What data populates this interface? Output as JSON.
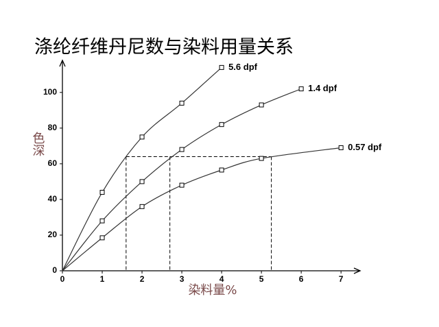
{
  "chart_data": {
    "type": "line",
    "title": "涤纶纤维丹尼数与染料用量关系",
    "y_label": "色深",
    "x_label": "染料量%",
    "xlim": [
      0,
      7.48
    ],
    "ylim": [
      0,
      118
    ],
    "xticks": [
      0,
      1,
      2,
      3,
      4,
      5,
      6,
      7
    ],
    "yticks": [
      0,
      20,
      40,
      60,
      80,
      100
    ],
    "series": [
      {
        "name": "5.6 dpf",
        "color": "#333333",
        "x": [
          0,
          1,
          2,
          3,
          4
        ],
        "values": [
          0,
          44,
          75,
          94,
          114
        ]
      },
      {
        "name": "1.4 dpf",
        "color": "#333333",
        "x": [
          0,
          1,
          2,
          3,
          4,
          5,
          6
        ],
        "values": [
          0,
          28,
          50,
          68,
          82,
          93,
          102
        ]
      },
      {
        "name": "0.57 dpf",
        "color": "#333333",
        "x": [
          0,
          1,
          2,
          3,
          4,
          5,
          7
        ],
        "values": [
          0,
          18.5,
          36,
          48,
          56.5,
          63,
          69
        ]
      }
    ],
    "reference_lines": {
      "y": 64,
      "x": [
        1.6,
        2.7,
        5.25
      ]
    }
  }
}
